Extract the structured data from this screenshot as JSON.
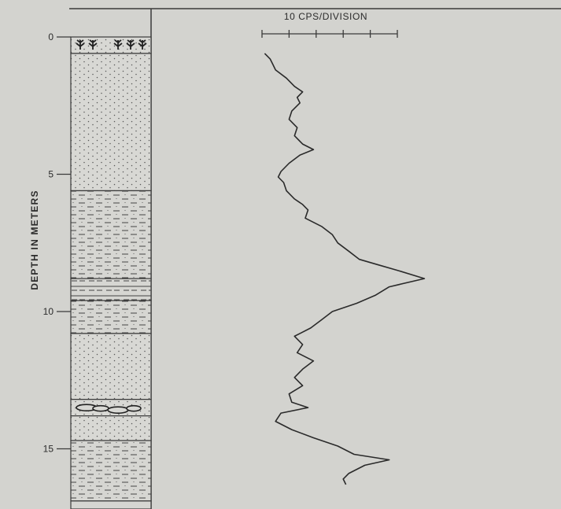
{
  "chart_data": {
    "type": "line",
    "title": "",
    "ylabel": "DEPTH IN METERS",
    "y_axis_inverted": true,
    "ylim": [
      0,
      17.3
    ],
    "yticks": [
      {
        "value": 0,
        "label": "0"
      },
      {
        "value": 5,
        "label": "5"
      },
      {
        "value": 10,
        "label": "10"
      },
      {
        "value": 15,
        "label": "15"
      }
    ],
    "x_scale": {
      "label": "10 CPS/DIVISION",
      "cps_per_division": 10,
      "divisions": 5
    },
    "lithology_column": [
      {
        "from": 0,
        "to": 0.6,
        "lithology": "rooted-sand"
      },
      {
        "from": 0.6,
        "to": 5.6,
        "lithology": "sand"
      },
      {
        "from": 5.6,
        "to": 8.8,
        "lithology": "silt-clay"
      },
      {
        "from": 8.8,
        "to": 9.6,
        "lithology": "interbedded"
      },
      {
        "from": 9.6,
        "to": 10.8,
        "lithology": "silt-clay"
      },
      {
        "from": 10.8,
        "to": 13.2,
        "lithology": "sand"
      },
      {
        "from": 13.2,
        "to": 13.8,
        "lithology": "pebbly-sand"
      },
      {
        "from": 13.8,
        "to": 14.7,
        "lithology": "sand"
      },
      {
        "from": 14.7,
        "to": 16.9,
        "lithology": "silt-clay"
      },
      {
        "from": 16.9,
        "to": 17.3,
        "lithology": "base"
      }
    ],
    "series": [
      {
        "x_unit": "divisions from left edge of scale bar",
        "depth": [
          0.6,
          0.8,
          1.0,
          1.2,
          1.5,
          1.8,
          2.0,
          2.2,
          2.4,
          2.7,
          3.0,
          3.3,
          3.6,
          3.9,
          4.1,
          4.3,
          4.6,
          4.9,
          5.1,
          5.3,
          5.6,
          5.9,
          6.1,
          6.3,
          6.6,
          6.9,
          7.2,
          7.5,
          7.8,
          8.1,
          8.3,
          8.5,
          8.8,
          9.1,
          9.4,
          9.7,
          10.0,
          10.3,
          10.6,
          10.9,
          11.2,
          11.5,
          11.8,
          12.1,
          12.4,
          12.7,
          13.0,
          13.3,
          13.5,
          13.7,
          14.0,
          14.3,
          14.6,
          14.9,
          15.2,
          15.4,
          15.6,
          15.9,
          16.1,
          16.3
        ],
        "x": [
          0.1,
          0.3,
          0.4,
          0.5,
          0.9,
          1.2,
          1.5,
          1.3,
          1.4,
          1.1,
          1.0,
          1.3,
          1.2,
          1.5,
          1.9,
          1.4,
          1.0,
          0.7,
          0.6,
          0.8,
          0.9,
          1.2,
          1.5,
          1.7,
          1.6,
          2.2,
          2.6,
          2.8,
          3.2,
          3.6,
          4.3,
          5.0,
          6.0,
          4.7,
          4.2,
          3.5,
          2.6,
          2.2,
          1.8,
          1.2,
          1.5,
          1.3,
          1.9,
          1.5,
          1.2,
          1.5,
          1.0,
          1.1,
          1.7,
          0.7,
          0.5,
          1.1,
          1.9,
          2.8,
          3.4,
          4.7,
          3.8,
          3.2,
          3.0,
          3.1
        ]
      }
    ]
  }
}
